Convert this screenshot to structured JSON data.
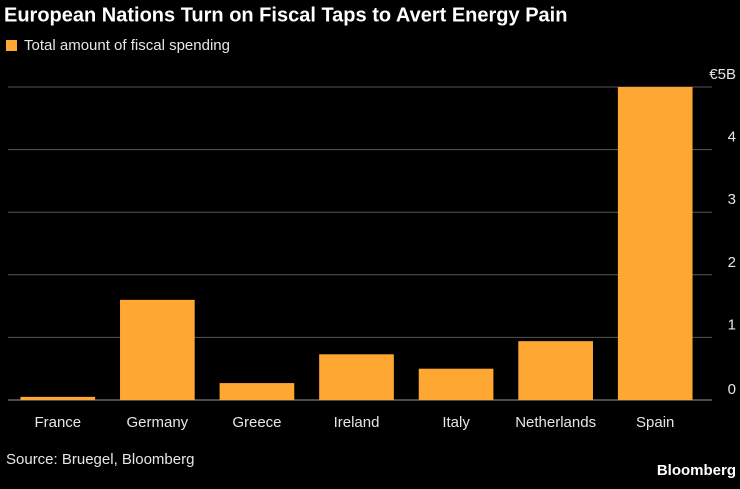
{
  "chart_data": {
    "type": "bar",
    "title": "European Nations Turn on Fiscal Taps to Avert Energy Pain",
    "series": [
      {
        "name": "Total amount of fiscal spending",
        "color": "#ffa733",
        "values": [
          0.05,
          1.6,
          0.27,
          0.73,
          0.5,
          0.94,
          5.0
        ]
      }
    ],
    "categories": [
      "France",
      "Germany",
      "Greece",
      "Ireland",
      "Italy",
      "Netherlands",
      "Spain"
    ],
    "ylim": [
      0,
      5
    ],
    "yticks": [
      0,
      1,
      2,
      3,
      4,
      {
        "value": 5,
        "label": "€5B"
      }
    ],
    "grid": true,
    "source": "Source: Bruegel, Bloomberg",
    "brand": "Bloomberg"
  }
}
